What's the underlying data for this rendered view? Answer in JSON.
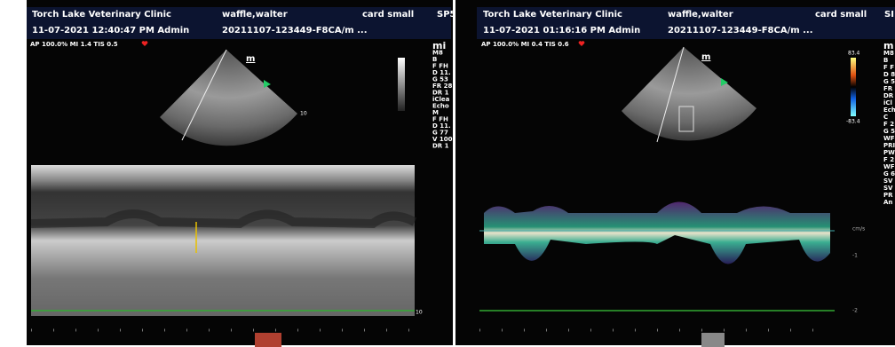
{
  "panels": [
    {
      "header": {
        "clinic": "Torch Lake Veterinary Clinic",
        "patient": "waffle,walter",
        "preset": "card small",
        "probe": "SP5",
        "datetime": "11-07-2021 12:40:47 PM  Admin",
        "study": "20211107-123449-F8CA/m ..."
      },
      "acoustic": "AP 100.0%  MI 1.4  TIS 0.5",
      "probe_mark": "m",
      "sector_depth": "10",
      "mmode_depth": "10",
      "side_params": [
        "mi",
        "M8",
        "B",
        "F FH",
        "D 11.",
        "G 53",
        "FR 28",
        "DR 1",
        "iClea",
        "Echo",
        "M",
        "F FH",
        "D 11.",
        "G 77",
        "V 100",
        "DR 1"
      ]
    },
    {
      "header": {
        "clinic": "Torch Lake Veterinary Clinic",
        "patient": "waffle,walter",
        "preset": "card small",
        "probe": "SI",
        "datetime": "11-07-2021 01:16:16 PM  Admin",
        "study": "20211107-123449-F8CA/m ..."
      },
      "acoustic": "AP 100.0%  MI 0.4  TIS 0.6",
      "probe_mark": "m",
      "color_max": "83.4",
      "color_min": "-83.4",
      "velocity_scale": [
        "cm/s",
        "-1",
        "-2"
      ],
      "side_params": [
        "m",
        "M8",
        "B",
        "F F",
        "D 8",
        "G 5",
        "FR",
        "DR",
        "iCl",
        "Ech",
        "C",
        "F 2",
        "G 5",
        "WF",
        "PRI",
        "PW",
        "F 2",
        "WF",
        "G 6",
        "SV",
        "SV",
        "PR",
        "An"
      ]
    }
  ]
}
